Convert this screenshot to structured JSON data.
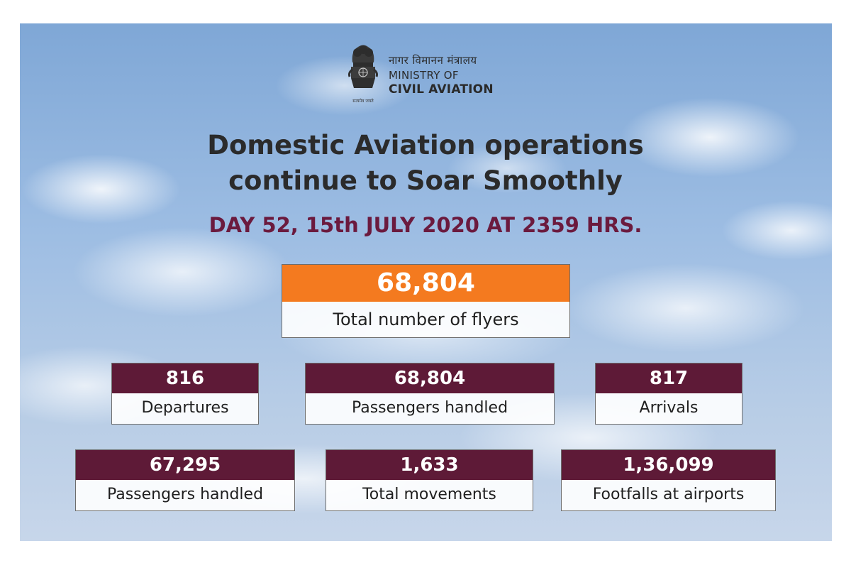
{
  "header": {
    "ministry_hindi": "नागर विमानन मंत्रालय",
    "ministry_line1": "MINISTRY OF",
    "ministry_line2": "CIVIL AVIATION",
    "emblem_motto": "सत्यमेव जयते"
  },
  "headline": {
    "line1": "Domestic Aviation operations",
    "line2": "continue to Soar Smoothly"
  },
  "dayline": "DAY 52, 15th JULY 2020 AT 2359 HRS.",
  "stats": {
    "total_flyers": {
      "value": "68,804",
      "label": "Total number of flyers"
    },
    "departures": {
      "value": "816",
      "label": "Departures"
    },
    "passengers_handled_1": {
      "value": "68,804",
      "label": "Passengers handled"
    },
    "arrivals": {
      "value": "817",
      "label": "Arrivals"
    },
    "passengers_handled_2": {
      "value": "67,295",
      "label": "Passengers handled"
    },
    "total_movements": {
      "value": "1,633",
      "label": "Total movements"
    },
    "footfalls": {
      "value": "1,36,099",
      "label": "Footfalls at airports"
    }
  },
  "colors": {
    "accent_orange": "#f47a1f",
    "maroon": "#5e1a37",
    "dayline": "#6b1a3e"
  }
}
